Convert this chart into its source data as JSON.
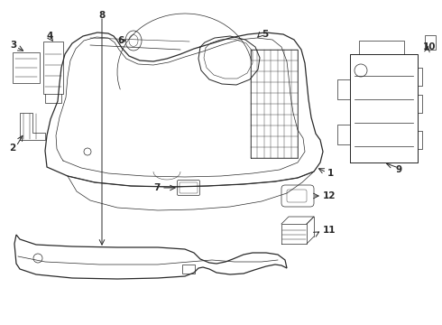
{
  "bg_color": "#ffffff",
  "line_color": "#2a2a2a",
  "lw_main": 0.9,
  "lw_thin": 0.5,
  "lw_detail": 0.35
}
